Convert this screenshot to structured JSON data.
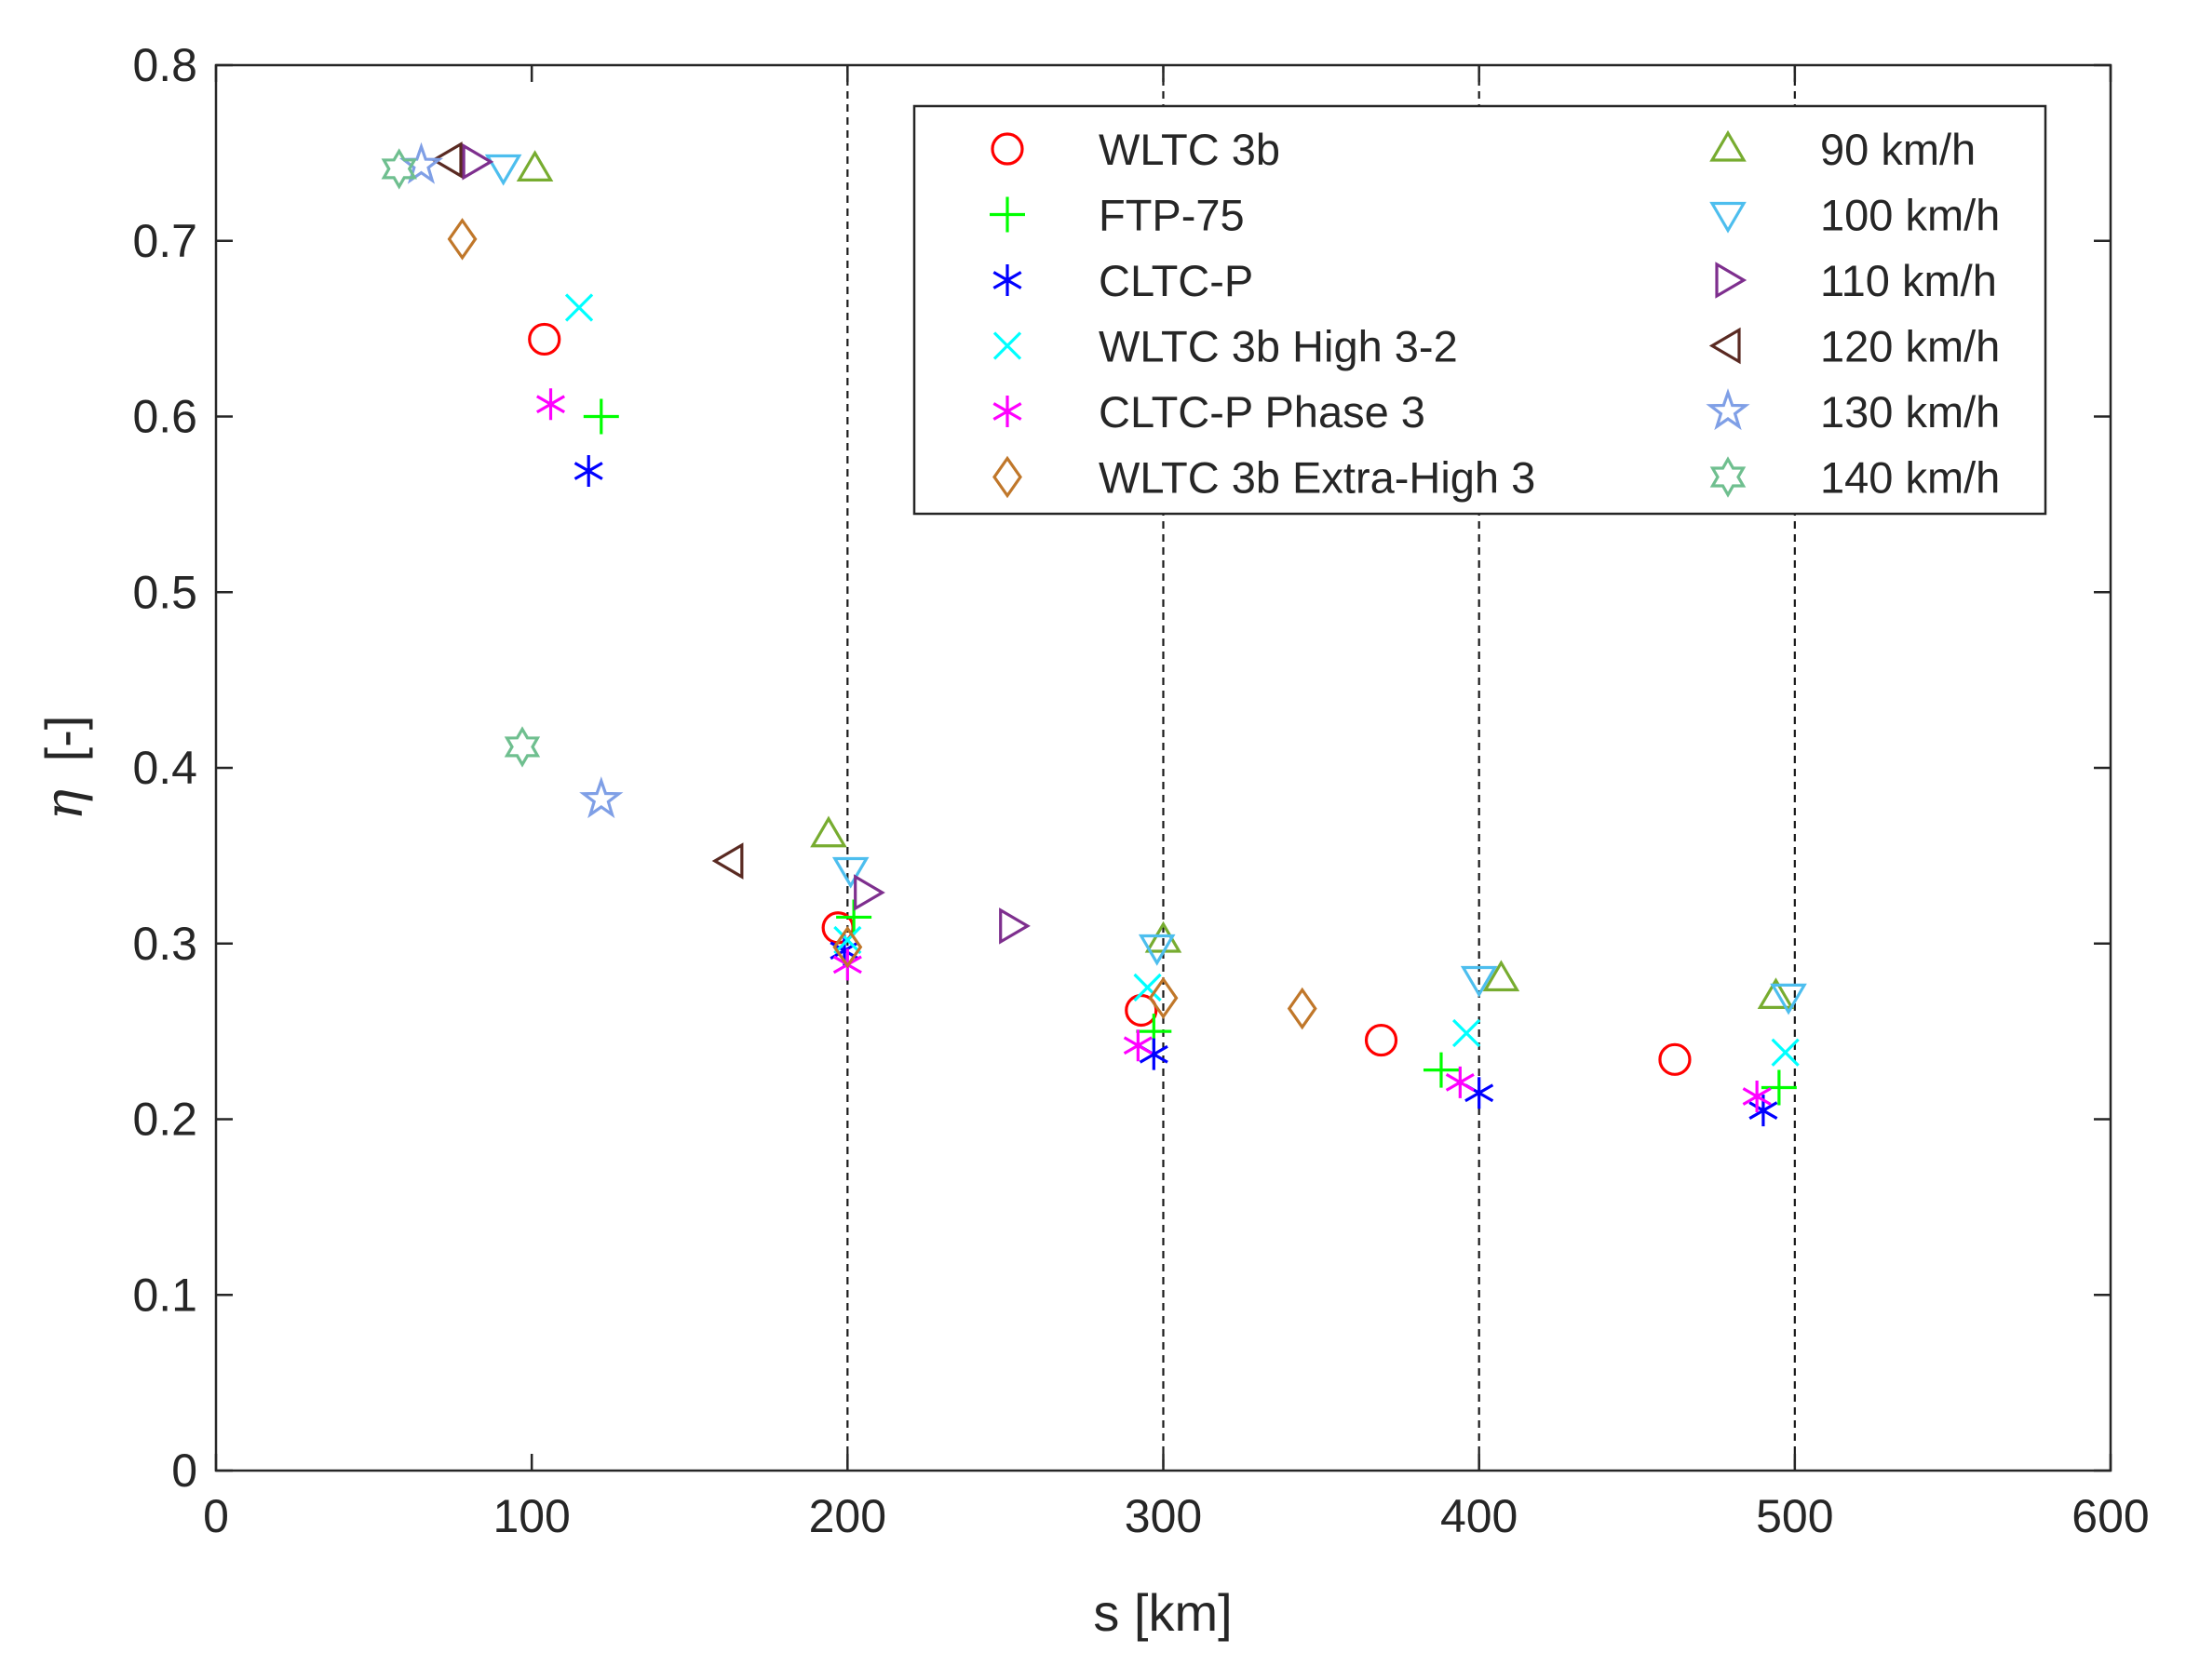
{
  "chart_data": {
    "type": "scatter",
    "xlabel": "s [km]",
    "ylabel_symbol": "η",
    "ylabel_unit": "[-]",
    "xlim": [
      0,
      600
    ],
    "ylim": [
      0,
      0.8
    ],
    "xticks": [
      0,
      100,
      200,
      300,
      400,
      500,
      600
    ],
    "yticks": [
      0,
      0.1,
      0.2,
      0.3,
      0.4,
      0.5,
      0.6,
      0.7,
      0.8
    ],
    "xtick_labels": [
      "0",
      "100",
      "200",
      "300",
      "400",
      "500",
      "600"
    ],
    "ytick_labels": [
      "0",
      "0.1",
      "0.2",
      "0.3",
      "0.4",
      "0.5",
      "0.6",
      "0.7",
      "0.8"
    ],
    "reference_lines_x": [
      200,
      300,
      400,
      500
    ],
    "grid": false,
    "legend_position": "top-right",
    "legend_columns": 2,
    "series": [
      {
        "name": "WLTC 3b",
        "marker": "circle",
        "color": "#ff0000",
        "points": [
          [
            104,
            0.644
          ],
          [
            197,
            0.309
          ],
          [
            293,
            0.262
          ],
          [
            369,
            0.245
          ],
          [
            462,
            0.234
          ]
        ]
      },
      {
        "name": "FTP-75",
        "marker": "plus",
        "color": "#00ff00",
        "points": [
          [
            122,
            0.6
          ],
          [
            202,
            0.315
          ],
          [
            297,
            0.25
          ],
          [
            388,
            0.228
          ],
          [
            495,
            0.218
          ]
        ]
      },
      {
        "name": "CLTC-P",
        "marker": "asterisk",
        "color": "#0000ff",
        "points": [
          [
            118,
            0.569
          ],
          [
            199,
            0.296
          ],
          [
            297,
            0.237
          ],
          [
            400,
            0.215
          ],
          [
            490,
            0.205
          ]
        ]
      },
      {
        "name": "WLTC 3b High 3-2",
        "marker": "cross",
        "color": "#00ffff",
        "points": [
          [
            115,
            0.662
          ],
          [
            200,
            0.302
          ],
          [
            295,
            0.275
          ],
          [
            396,
            0.249
          ],
          [
            497,
            0.238
          ]
        ]
      },
      {
        "name": "CLTC-P Phase 3",
        "marker": "asterisk",
        "color": "#ff00ff",
        "points": [
          [
            106,
            0.607
          ],
          [
            200,
            0.288
          ],
          [
            292,
            0.242
          ],
          [
            394,
            0.221
          ],
          [
            488,
            0.213
          ]
        ]
      },
      {
        "name": "WLTC 3b Extra-High 3",
        "marker": "diamond",
        "color": "#c0772a",
        "points": [
          [
            78,
            0.701
          ],
          [
            200,
            0.298
          ],
          [
            300,
            0.269
          ],
          [
            344,
            0.263
          ]
        ]
      },
      {
        "name": "90 km/h",
        "marker": "triangle-up",
        "color": "#77ac30",
        "points": [
          [
            101,
            0.741
          ],
          [
            194,
            0.362
          ],
          [
            300,
            0.302
          ],
          [
            407,
            0.28
          ],
          [
            494,
            0.27
          ]
        ]
      },
      {
        "name": "100 km/h",
        "marker": "triangle-down",
        "color": "#4dbeee",
        "points": [
          [
            91,
            0.742
          ],
          [
            201,
            0.342
          ],
          [
            298,
            0.298
          ],
          [
            400,
            0.28
          ],
          [
            498,
            0.27
          ]
        ]
      },
      {
        "name": "110 km/h",
        "marker": "triangle-right",
        "color": "#7e2f8e",
        "points": [
          [
            82,
            0.745
          ],
          [
            206,
            0.329
          ],
          [
            252,
            0.31
          ]
        ]
      },
      {
        "name": "120 km/h",
        "marker": "triangle-left",
        "color": "#5a2a22",
        "points": [
          [
            74,
            0.746
          ],
          [
            163,
            0.347
          ]
        ]
      },
      {
        "name": "130 km/h",
        "marker": "star5",
        "color": "#7f9fe6",
        "points": [
          [
            65,
            0.743
          ],
          [
            122,
            0.382
          ]
        ]
      },
      {
        "name": "140 km/h",
        "marker": "star6",
        "color": "#6fbf8f",
        "points": [
          [
            58,
            0.741
          ],
          [
            97,
            0.412
          ]
        ]
      }
    ]
  }
}
